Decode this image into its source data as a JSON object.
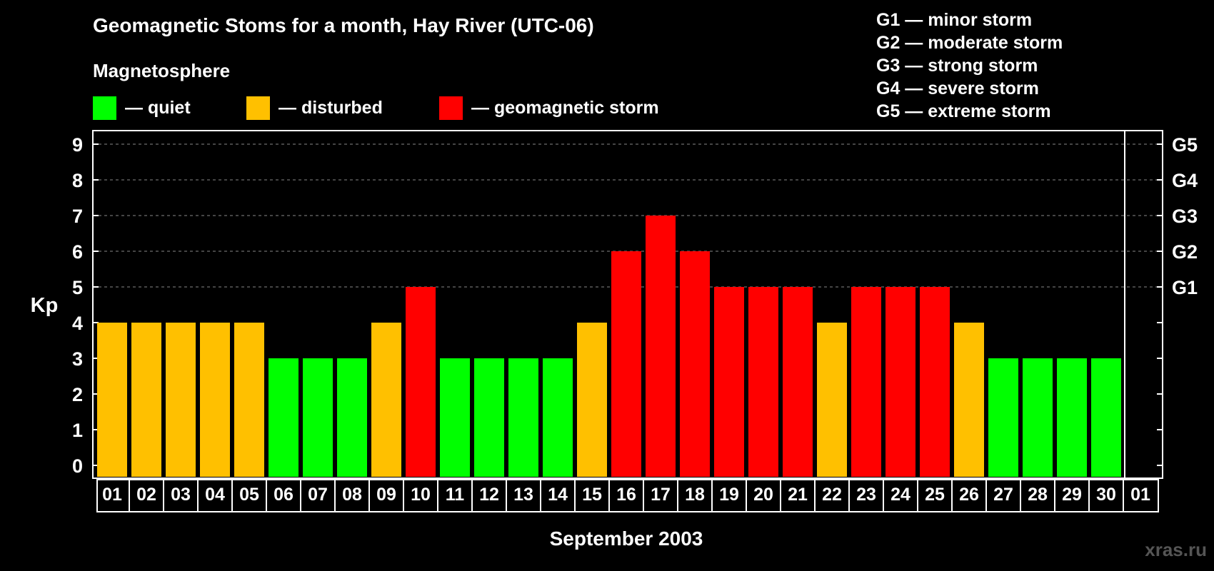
{
  "title": "Geomagnetic Stoms for a month, Hay River (UTC-06)",
  "subtitle": "Magnetosphere",
  "legend": [
    {
      "label": "— quiet",
      "color": "#00ff00"
    },
    {
      "label": "— disturbed",
      "color": "#ffc000"
    },
    {
      "label": "— geomagnetic storm",
      "color": "#ff0000"
    }
  ],
  "g_legend": [
    "G1 — minor storm",
    "G2 — moderate storm",
    "G3 — strong storm",
    "G4 — severe storm",
    "G5 — extreme storm"
  ],
  "watermark": "xras.ru",
  "chart_data": {
    "type": "bar",
    "title": "Geomagnetic Stoms for a month, Hay River (UTC-06)",
    "xlabel": "September 2003",
    "ylabel": "Kp",
    "ylim": [
      0,
      9
    ],
    "yticks": [
      "0",
      "1",
      "2",
      "3",
      "4",
      "5",
      "6",
      "7",
      "8",
      "9"
    ],
    "y2_ticks": [
      {
        "value": 5,
        "label": "G1"
      },
      {
        "value": 6,
        "label": "G2"
      },
      {
        "value": 7,
        "label": "G3"
      },
      {
        "value": 8,
        "label": "G4"
      },
      {
        "value": 9,
        "label": "G5"
      }
    ],
    "grid": "dashed at 5–9",
    "categories": [
      "01",
      "02",
      "03",
      "04",
      "05",
      "06",
      "07",
      "08",
      "09",
      "10",
      "11",
      "12",
      "13",
      "14",
      "15",
      "16",
      "17",
      "18",
      "19",
      "20",
      "21",
      "22",
      "23",
      "24",
      "25",
      "26",
      "27",
      "28",
      "29",
      "30",
      "01"
    ],
    "values": [
      4,
      4,
      4,
      4,
      4,
      3,
      3,
      3,
      4,
      5,
      3,
      3,
      3,
      3,
      4,
      6,
      7,
      6,
      5,
      5,
      5,
      4,
      5,
      5,
      5,
      4,
      3,
      3,
      3,
      3,
      null
    ],
    "colors": {
      "quiet": "#00ff00",
      "disturbed": "#ffc000",
      "storm": "#ff0000"
    }
  }
}
